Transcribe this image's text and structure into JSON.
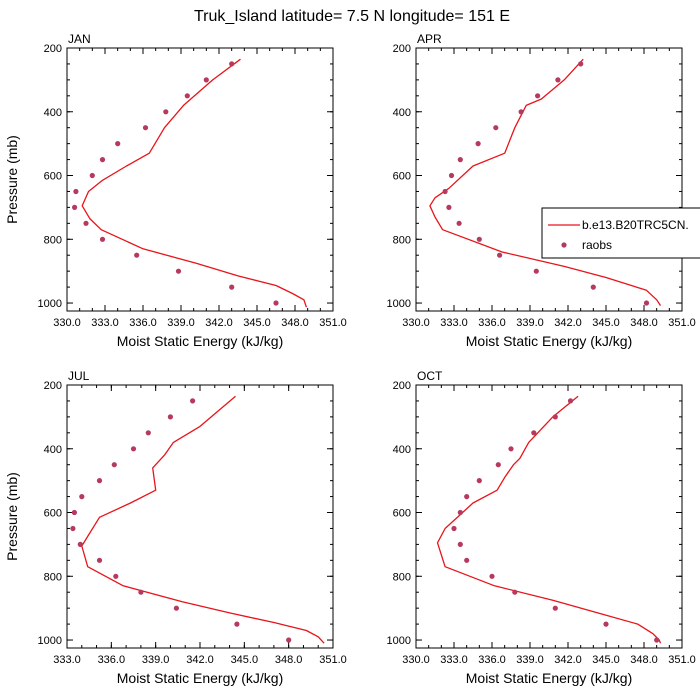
{
  "figure_title": "Truk_Island  latitude= 7.5 N longitude= 151 E",
  "colors": {
    "model": "#e8141a",
    "obs": "#b53a5e"
  },
  "legend": {
    "model_label": "b.e13.B20TRC5CN.",
    "obs_label": "raobs"
  },
  "chart_data": [
    {
      "type": "line",
      "title": "JAN",
      "xlabel": "Moist Static Energy (kJ/kg)",
      "ylabel": "Pressure (mb)",
      "xlim": [
        330.0,
        351.0
      ],
      "ylim": [
        1025,
        200
      ],
      "xticks": [
        "330.0",
        "333.0",
        "336.0",
        "339.0",
        "342.0",
        "345.0",
        "348.0",
        "351.0"
      ],
      "yticks": [
        "200",
        "400",
        "600",
        "800",
        "1000"
      ],
      "series": [
        {
          "name": "b.e13.B20TRC5CN.",
          "kind": "line",
          "points": [
            [
              343.7,
              235
            ],
            [
              341.5,
              300
            ],
            [
              339.2,
              380
            ],
            [
              337.7,
              450
            ],
            [
              336.5,
              530
            ],
            [
              334.7,
              570
            ],
            [
              332.8,
              615
            ],
            [
              331.7,
              650
            ],
            [
              331.2,
              695
            ],
            [
              331.8,
              735
            ],
            [
              332.7,
              770
            ],
            [
              336.0,
              830
            ],
            [
              340.2,
              875
            ],
            [
              343.5,
              915
            ],
            [
              346.5,
              945
            ],
            [
              347.8,
              970
            ],
            [
              348.7,
              990
            ],
            [
              348.9,
              1013
            ]
          ]
        },
        {
          "name": "raobs",
          "kind": "scatter",
          "points": [
            [
              343.0,
              250
            ],
            [
              341.0,
              300
            ],
            [
              339.5,
              350
            ],
            [
              337.8,
              400
            ],
            [
              336.2,
              450
            ],
            [
              334.0,
              500
            ],
            [
              332.8,
              550
            ],
            [
              332.0,
              600
            ],
            [
              330.7,
              650
            ],
            [
              330.6,
              700
            ],
            [
              331.5,
              750
            ],
            [
              332.8,
              800
            ],
            [
              335.5,
              850
            ],
            [
              338.8,
              900
            ],
            [
              343.0,
              950
            ],
            [
              346.5,
              1000
            ]
          ]
        }
      ]
    },
    {
      "type": "line",
      "title": "APR",
      "xlabel": "Moist Static Energy (kJ/kg)",
      "ylabel": "Pressure (mb)",
      "xlim": [
        330.0,
        351.0
      ],
      "ylim": [
        1025,
        200
      ],
      "xticks": [
        "330.0",
        "333.0",
        "336.0",
        "339.0",
        "342.0",
        "345.0",
        "348.0",
        "351.0"
      ],
      "yticks": [
        "200",
        "400",
        "600",
        "800",
        "1000"
      ],
      "series": [
        {
          "name": "b.e13.B20TRC5CN.",
          "kind": "line",
          "points": [
            [
              343.2,
              235
            ],
            [
              341.7,
              300
            ],
            [
              339.9,
              360
            ],
            [
              338.7,
              380
            ],
            [
              337.8,
              450
            ],
            [
              337.5,
              480
            ],
            [
              337.0,
              530
            ],
            [
              334.5,
              570
            ],
            [
              332.6,
              640
            ],
            [
              331.5,
              670
            ],
            [
              331.1,
              695
            ],
            [
              331.5,
              730
            ],
            [
              332.1,
              770
            ],
            [
              336.8,
              840
            ],
            [
              341.7,
              885
            ],
            [
              345.0,
              920
            ],
            [
              348.2,
              960
            ],
            [
              349.0,
              990
            ],
            [
              349.3,
              1008
            ]
          ]
        },
        {
          "name": "raobs",
          "kind": "scatter",
          "points": [
            [
              343.0,
              250
            ],
            [
              341.2,
              300
            ],
            [
              339.6,
              350
            ],
            [
              338.3,
              400
            ],
            [
              336.3,
              450
            ],
            [
              334.9,
              500
            ],
            [
              333.5,
              550
            ],
            [
              332.8,
              600
            ],
            [
              332.3,
              650
            ],
            [
              332.6,
              700
            ],
            [
              333.4,
              750
            ],
            [
              335.0,
              800
            ],
            [
              336.6,
              850
            ],
            [
              339.5,
              900
            ],
            [
              344.0,
              950
            ],
            [
              348.2,
              1000
            ]
          ]
        }
      ]
    },
    {
      "type": "line",
      "title": "JUL",
      "xlabel": "Moist Static Energy (kJ/kg)",
      "ylabel": "Pressure (mb)",
      "xlim": [
        333.0,
        351.0
      ],
      "ylim": [
        1025,
        200
      ],
      "xticks": [
        "333.0",
        "336.0",
        "339.0",
        "342.0",
        "345.0",
        "348.0",
        "351.0"
      ],
      "yticks": [
        "200",
        "400",
        "600",
        "800",
        "1000"
      ],
      "series": [
        {
          "name": "b.e13.B20TRC5CN.",
          "kind": "line",
          "points": [
            [
              344.4,
              235
            ],
            [
              342.0,
              330
            ],
            [
              340.2,
              380
            ],
            [
              339.6,
              420
            ],
            [
              338.8,
              460
            ],
            [
              339.0,
              530
            ],
            [
              337.3,
              570
            ],
            [
              335.2,
              615
            ],
            [
              334.4,
              675
            ],
            [
              334.0,
              705
            ],
            [
              334.4,
              770
            ],
            [
              336.8,
              830
            ],
            [
              340.8,
              880
            ],
            [
              344.0,
              915
            ],
            [
              347.0,
              945
            ],
            [
              349.2,
              970
            ],
            [
              350.0,
              990
            ],
            [
              350.4,
              1010
            ]
          ]
        },
        {
          "name": "raobs",
          "kind": "scatter",
          "points": [
            [
              341.5,
              250
            ],
            [
              340.0,
              300
            ],
            [
              338.5,
              350
            ],
            [
              337.5,
              400
            ],
            [
              336.2,
              450
            ],
            [
              335.2,
              500
            ],
            [
              334.0,
              550
            ],
            [
              333.5,
              600
            ],
            [
              333.4,
              650
            ],
            [
              333.9,
              700
            ],
            [
              335.2,
              750
            ],
            [
              336.3,
              800
            ],
            [
              338.0,
              850
            ],
            [
              340.4,
              900
            ],
            [
              344.5,
              950
            ],
            [
              348.0,
              1000
            ]
          ]
        }
      ]
    },
    {
      "type": "line",
      "title": "OCT",
      "xlabel": "Moist Static Energy (kJ/kg)",
      "ylabel": "Pressure (mb)",
      "xlim": [
        330.0,
        351.0
      ],
      "ylim": [
        1025,
        200
      ],
      "xticks": [
        "330.0",
        "333.0",
        "336.0",
        "339.0",
        "342.0",
        "345.0",
        "348.0",
        "351.0"
      ],
      "yticks": [
        "200",
        "400",
        "600",
        "800",
        "1000"
      ],
      "series": [
        {
          "name": "b.e13.B20TRC5CN.",
          "kind": "line",
          "points": [
            [
              342.8,
              235
            ],
            [
              340.8,
              300
            ],
            [
              338.9,
              380
            ],
            [
              338.2,
              430
            ],
            [
              337.7,
              450
            ],
            [
              337.0,
              490
            ],
            [
              336.4,
              530
            ],
            [
              334.5,
              570
            ],
            [
              332.3,
              650
            ],
            [
              331.7,
              695
            ],
            [
              332.3,
              770
            ],
            [
              336.2,
              830
            ],
            [
              340.8,
              875
            ],
            [
              344.8,
              920
            ],
            [
              347.5,
              950
            ],
            [
              348.7,
              980
            ],
            [
              349.2,
              1000
            ],
            [
              349.3,
              1010
            ]
          ]
        },
        {
          "name": "raobs",
          "kind": "scatter",
          "points": [
            [
              342.2,
              250
            ],
            [
              341.0,
              300
            ],
            [
              339.3,
              350
            ],
            [
              337.5,
              400
            ],
            [
              336.5,
              450
            ],
            [
              335.0,
              500
            ],
            [
              334.0,
              550
            ],
            [
              333.5,
              600
            ],
            [
              333.0,
              650
            ],
            [
              333.5,
              700
            ],
            [
              334.0,
              750
            ],
            [
              336.0,
              800
            ],
            [
              337.8,
              850
            ],
            [
              341.0,
              900
            ],
            [
              345.0,
              950
            ],
            [
              349.0,
              1000
            ]
          ]
        }
      ]
    }
  ]
}
